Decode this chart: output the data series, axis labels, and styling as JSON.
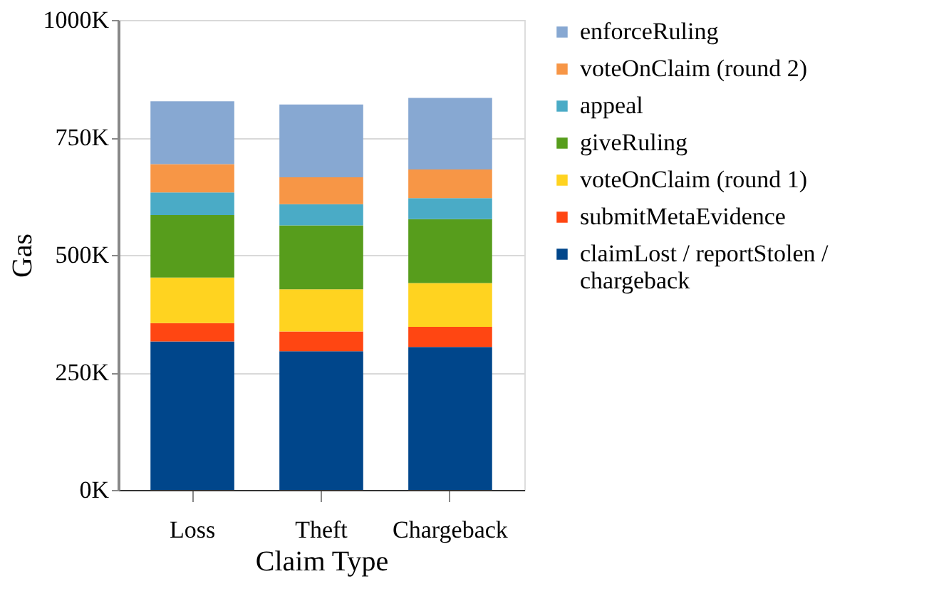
{
  "chart_data": {
    "type": "bar",
    "stacked": true,
    "xlabel": "Claim Type",
    "ylabel": "Gas",
    "categories": [
      "Loss",
      "Theft",
      "Chargeback"
    ],
    "series": [
      {
        "name": "claimLost / reportStolen / chargeback",
        "color": "#00468b",
        "values": [
          316,
          295,
          304
        ]
      },
      {
        "name": "submitMetaEvidence",
        "color": "#ff4612",
        "values": [
          39,
          42,
          43
        ]
      },
      {
        "name": "voteOnClaim (round 1)",
        "color": "#ffd320",
        "values": [
          97,
          90,
          93
        ]
      },
      {
        "name": "giveRuling",
        "color": "#579d1c",
        "values": [
          133,
          136,
          136
        ]
      },
      {
        "name": "appeal",
        "color": "#4aabc6",
        "values": [
          48,
          45,
          45
        ]
      },
      {
        "name": "voteOnClaim (round 2)",
        "color": "#f79646",
        "values": [
          60,
          57,
          61
        ]
      },
      {
        "name": "enforceRuling",
        "color": "#87a8d2",
        "values": [
          134,
          155,
          152
        ]
      }
    ],
    "ylim": [
      0,
      1000
    ],
    "yticks": [
      {
        "value": 0,
        "label": "0K"
      },
      {
        "value": 250,
        "label": "250K"
      },
      {
        "value": 500,
        "label": "500K"
      },
      {
        "value": 750,
        "label": "750K"
      },
      {
        "value": 1000,
        "label": "1000K"
      }
    ],
    "grid": "y",
    "legend": "right"
  }
}
